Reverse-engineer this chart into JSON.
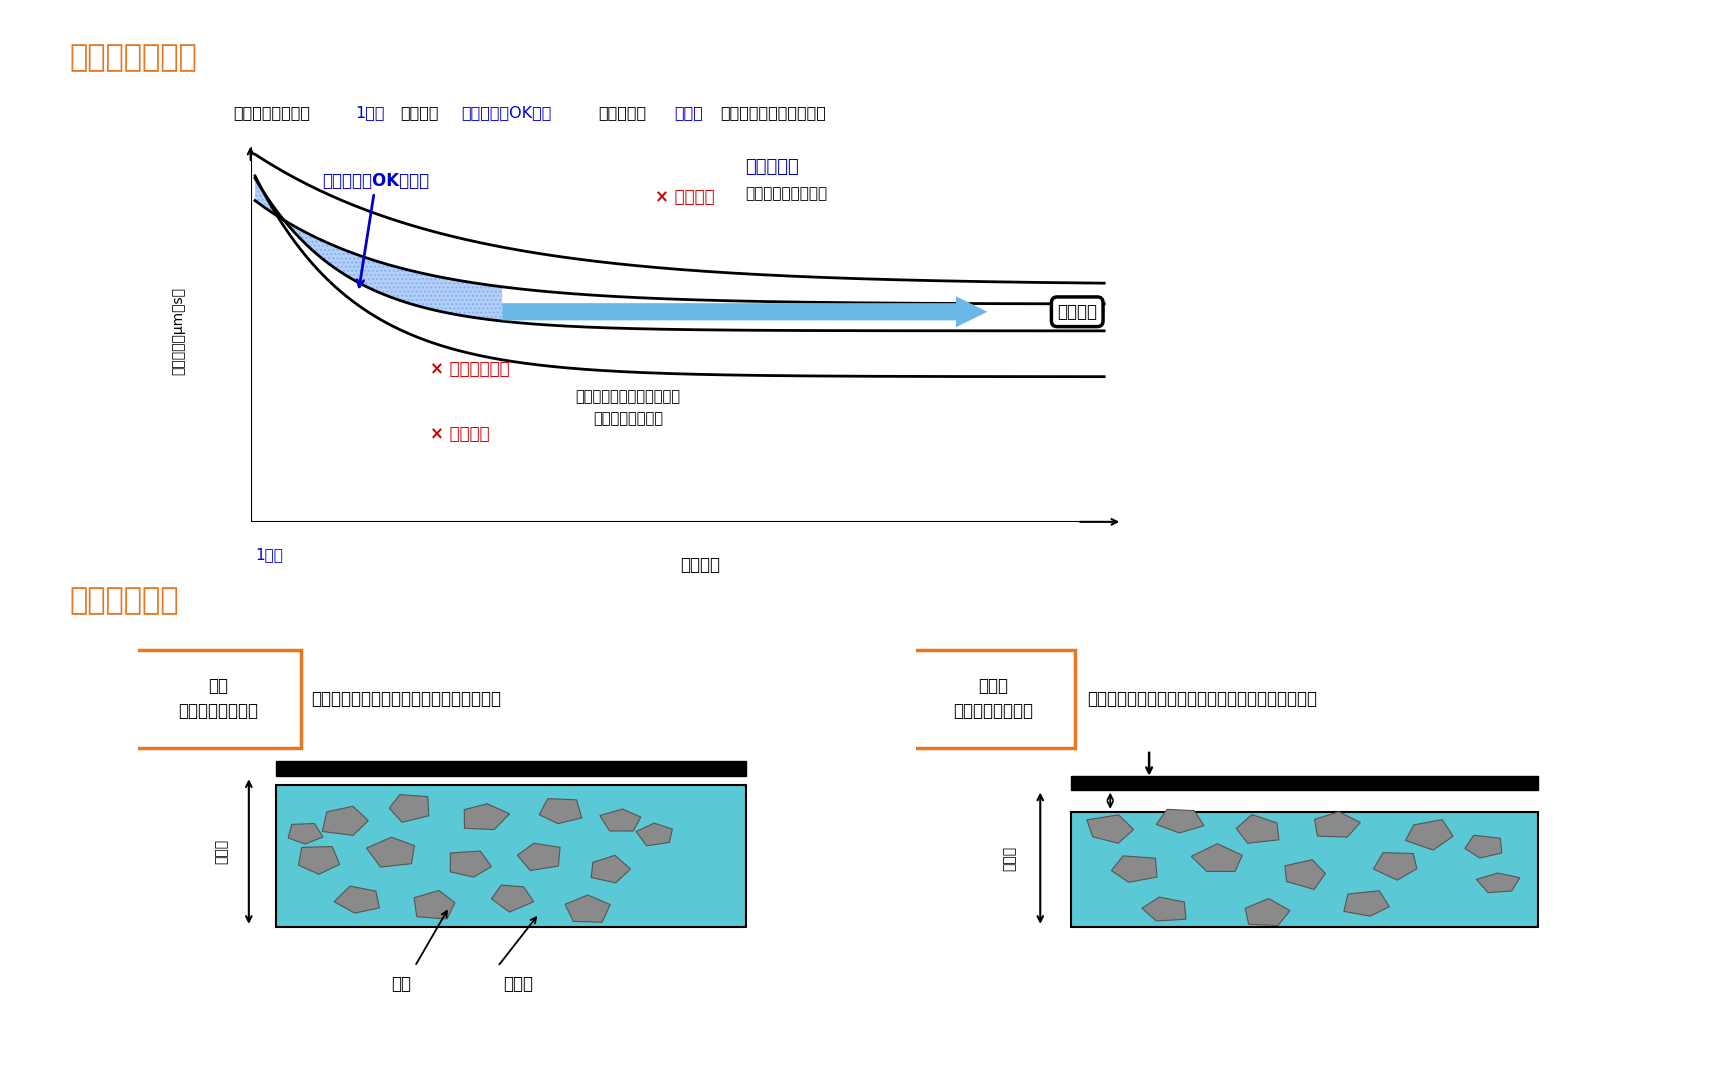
{
  "title1": "目立ての考え方",
  "title2": "目立ての特長",
  "subtitle_parts": [
    "最良な目立て＝「",
    "1穴目",
    "」から「",
    "初期能率がOK範囲",
    "」に入り「",
    "安定域",
    "」に移行していく砥石面"
  ],
  "subtitle_colors": [
    "#000000",
    "#0000CD",
    "#000000",
    "#0000CD",
    "#000000",
    "#0000CD",
    "#000000"
  ],
  "label_ok_range": "「初期能率OK範囲」",
  "label_stable": "「安定域」",
  "label_stable_sub": "（砥石の自生作用）",
  "label_kiresug": "× 切れすぎ",
  "label_mitate": "× 初期能率未達",
  "label_metsubure": "× 目つぶれ",
  "label_seimei": "砥石寿命",
  "label_joken": "加工条件・砥石明細により\n決定する加工能率",
  "xlabel": "加工穴数",
  "ylabel": "加工能率（μm／s）",
  "x1label": "1穴目",
  "section2_left_title": "成形\n（ツルーイング）",
  "section2_left_desc": "砥石の外径をそろえる＝砥石円筒度の確保",
  "section2_right_title": "目立て\n（ドレッシング）",
  "section2_right_desc": "砥粒にダメージを与えず砥粒の適正量を突出させる",
  "label_shuryuu": "砥粒",
  "label_bond": "ボンド",
  "label_metsuke": "目高度",
  "orange_color": "#E87722",
  "blue_color": "#0000CD",
  "light_blue_arrow": "#6BB8E8",
  "red_color": "#CC0000",
  "bg_color": "#FFFFFF",
  "teal_color": "#5BC8D5",
  "stone_color": "#8A8A8A"
}
